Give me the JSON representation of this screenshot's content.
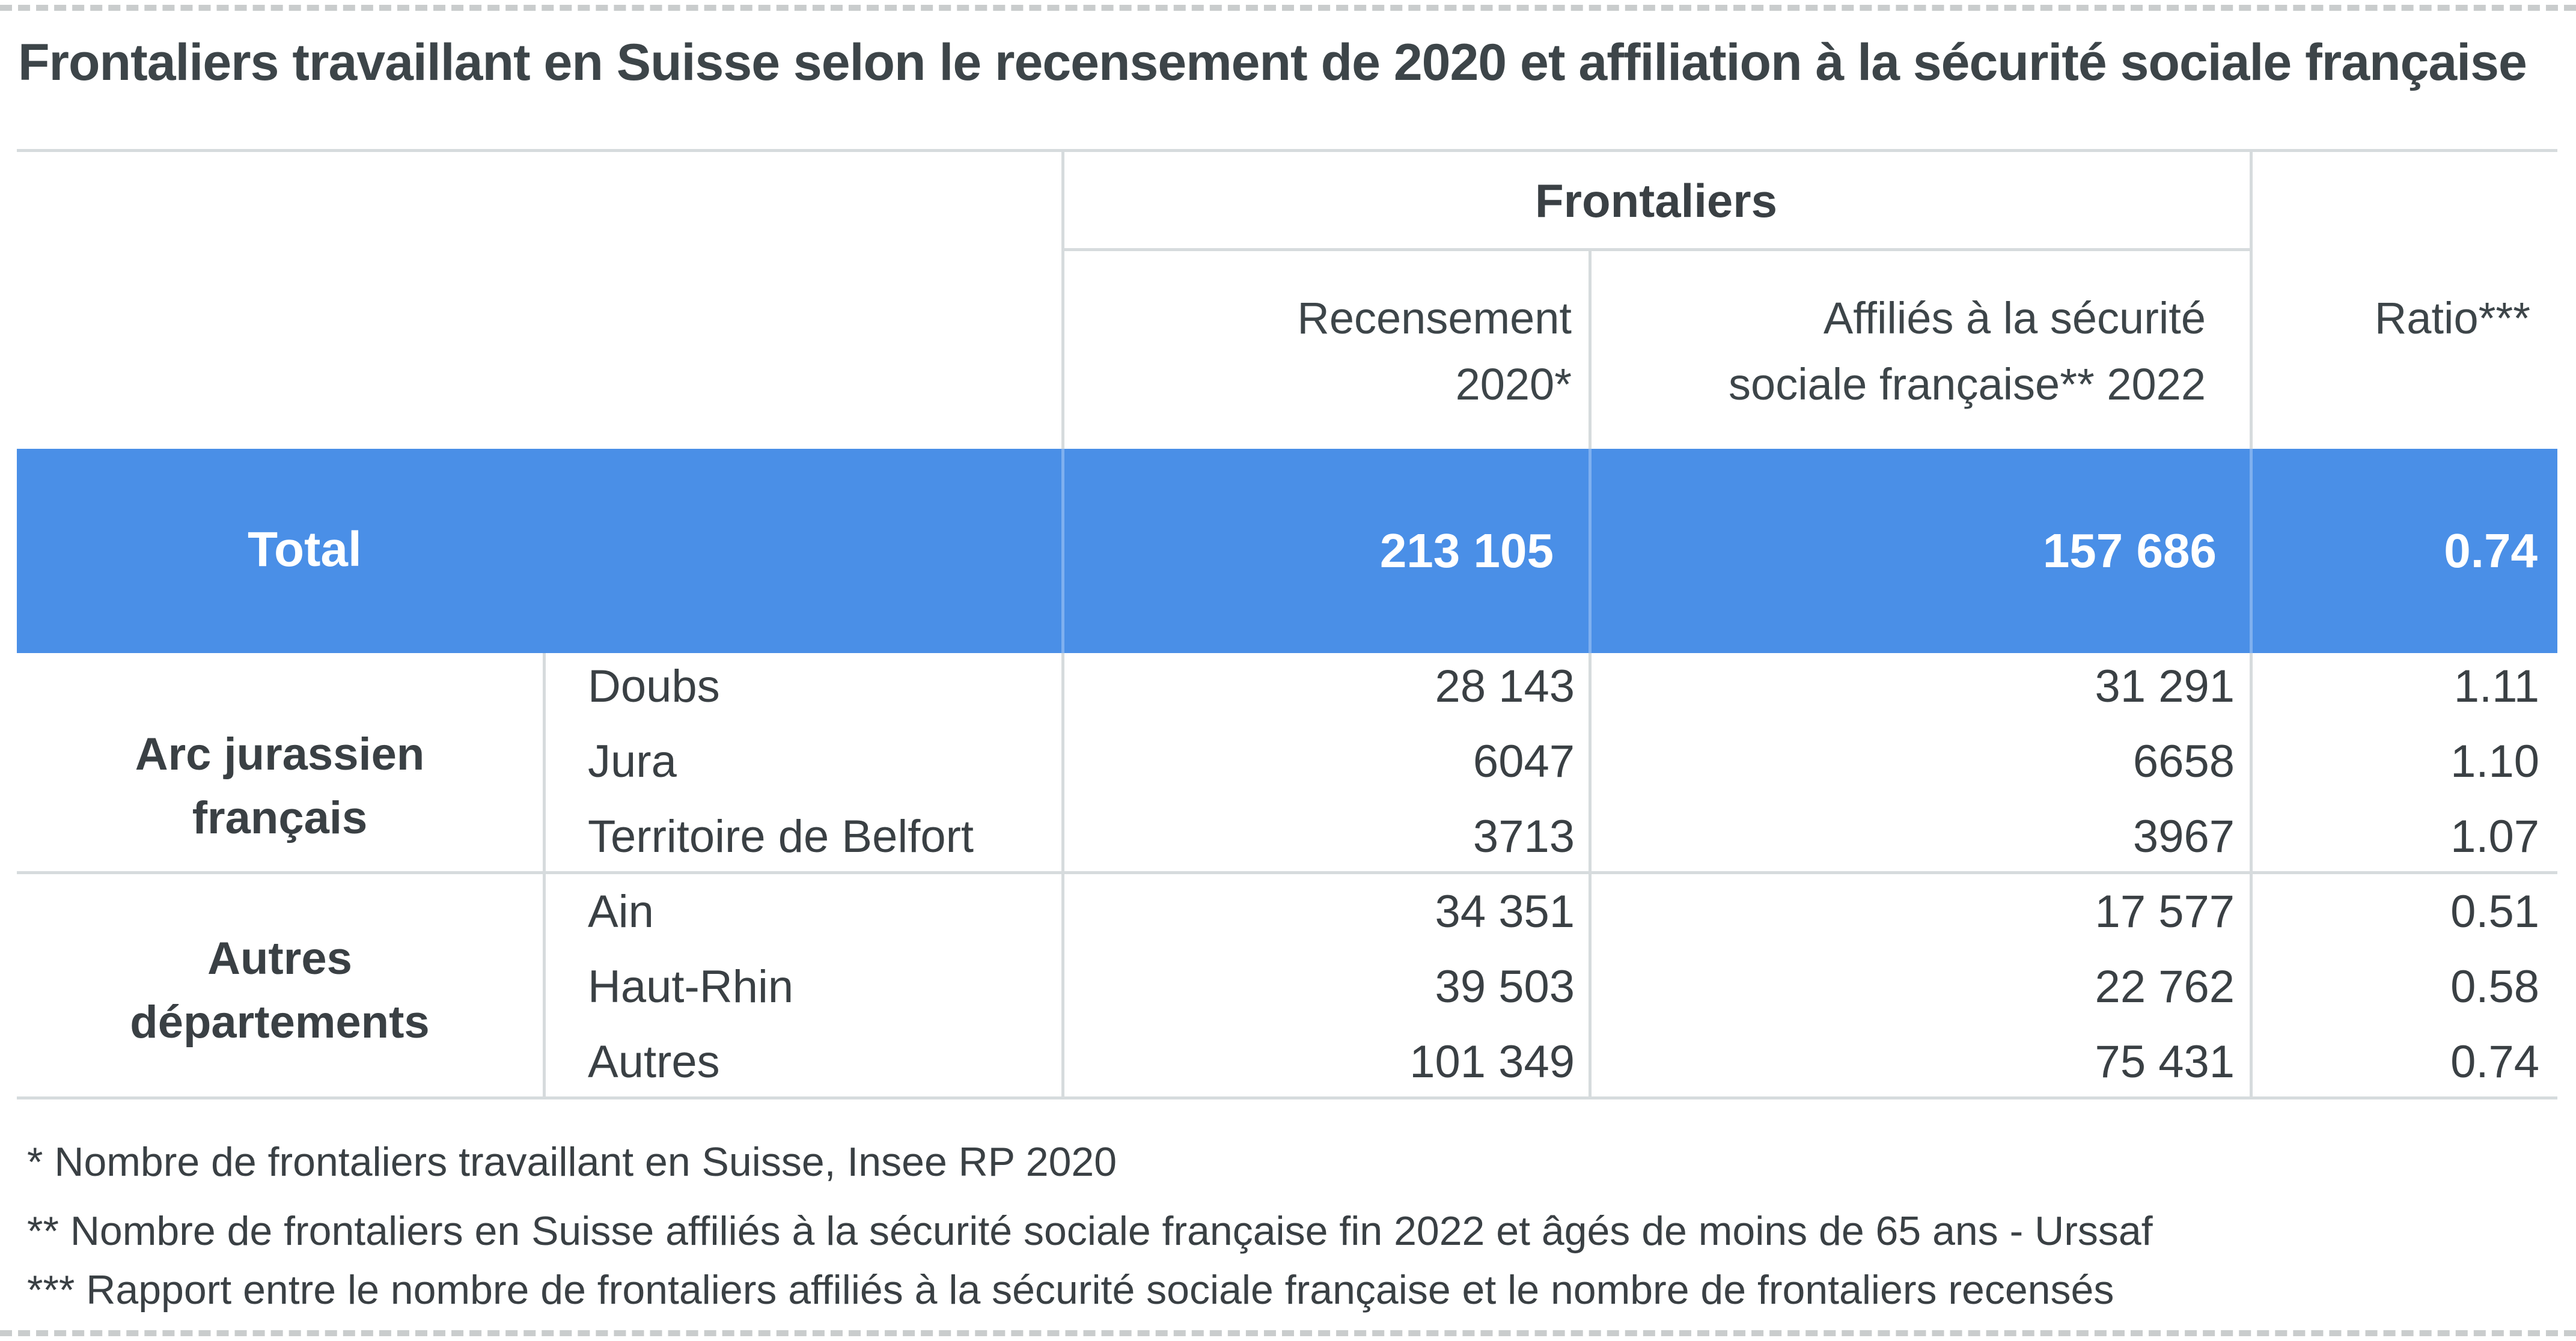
{
  "title": "Frontaliers travaillant en Suisse selon le recensement de 2020 et affiliation à la sécurité sociale française",
  "header": {
    "group": "Frontaliers",
    "col_recensement_line1": "Recensement",
    "col_recensement_line2": "2020*",
    "col_affilies_line1": "Affiliés à la sécurité",
    "col_affilies_line2": "sociale française** 2022",
    "col_ratio": "Ratio***"
  },
  "total": {
    "label": "Total",
    "recensement": "213 105",
    "affilies": "157 686",
    "ratio": "0.74"
  },
  "groups": [
    {
      "label_line1": "Arc jurassien",
      "label_line2": "français",
      "rows": [
        {
          "name": "Doubs",
          "recensement": "28 143",
          "affilies": "31 291",
          "ratio": "1.11"
        },
        {
          "name": "Jura",
          "recensement": "6047",
          "affilies": "6658",
          "ratio": "1.10"
        },
        {
          "name": "Territoire de Belfort",
          "recensement": "3713",
          "affilies": "3967",
          "ratio": "1.07"
        }
      ]
    },
    {
      "label_line1": "Autres",
      "label_line2": "départements",
      "rows": [
        {
          "name": "Ain",
          "recensement": "34 351",
          "affilies": "17 577",
          "ratio": "0.51"
        },
        {
          "name": "Haut-Rhin",
          "recensement": "39 503",
          "affilies": "22 762",
          "ratio": "0.58"
        },
        {
          "name": "Autres",
          "recensement": "101 349",
          "affilies": "75 431",
          "ratio": "0.74"
        }
      ]
    }
  ],
  "notes": [
    "* Nombre de frontaliers travaillant en Suisse, Insee RP 2020",
    "** Nombre de frontaliers en Suisse affiliés à la sécurité sociale française fin 2022 et âgés de moins de 65 ans - Urssaf",
    "*** Rapport entre le nombre de frontaliers affiliés à la sécurité sociale française et le nombre de frontaliers recensés"
  ]
}
